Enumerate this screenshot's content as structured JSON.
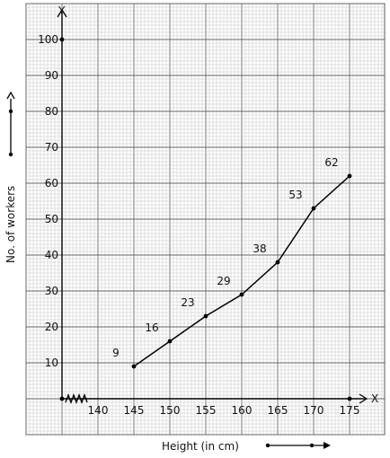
{
  "chart_data": {
    "type": "line",
    "title": "",
    "xlabel": "Height (in cm)",
    "ylabel": "No. of workers",
    "x_axis_name": "X",
    "y_axis_name": "Y",
    "x": [
      145,
      150,
      155,
      160,
      165,
      170,
      175
    ],
    "values": [
      9,
      16,
      23,
      29,
      38,
      53,
      62
    ],
    "point_labels": [
      "9",
      "16",
      "23",
      "29",
      "38",
      "53",
      "62"
    ],
    "x_ticks": [
      140,
      145,
      150,
      155,
      160,
      165,
      170,
      175
    ],
    "x_tick_labels": [
      "140",
      "145",
      "150",
      "155",
      "160",
      "165",
      "170",
      "175"
    ],
    "y_ticks": [
      10,
      20,
      30,
      40,
      50,
      60,
      70,
      80,
      90,
      100
    ],
    "y_tick_labels": [
      "10",
      "20",
      "30",
      "40",
      "50",
      "60",
      "70",
      "80",
      "90",
      "100"
    ],
    "xlim": [
      137,
      177
    ],
    "ylim": [
      0,
      100
    ],
    "x_axis_break": true,
    "grid": true,
    "background": "graph-paper",
    "line_color": "#000000",
    "grid_color": "#9a9a9a"
  }
}
